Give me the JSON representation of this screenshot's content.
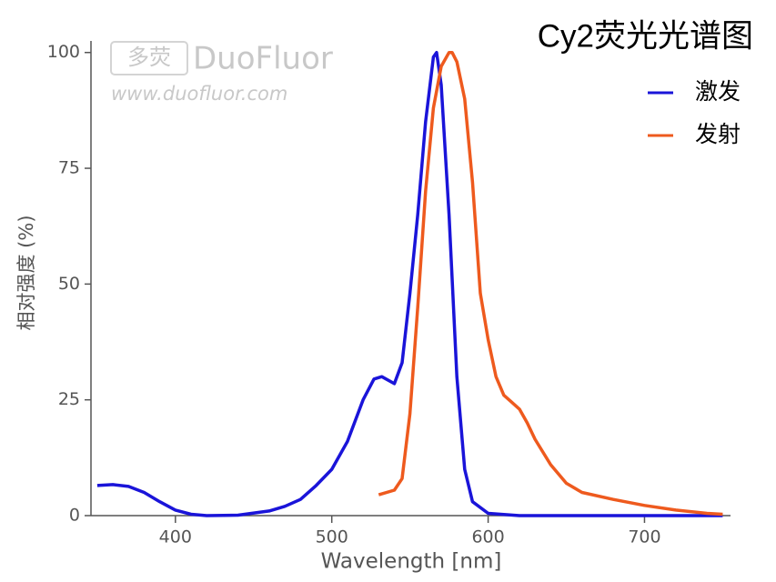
{
  "chart_data": {
    "type": "line",
    "title": "Cy2荧光光谱图",
    "watermark": "DuoFluor",
    "watermark_logo": "多荧",
    "watermark_url": "www.duofluor.com",
    "x_label": "Wavelength [nm]",
    "y_label": "相对强度 (%)",
    "xlim": [
      346,
      755
    ],
    "ylim": [
      0,
      102.5
    ],
    "xticks": [
      400,
      500,
      600,
      700
    ],
    "yticks": [
      0,
      25,
      50,
      75,
      100
    ],
    "legend": "top-right",
    "series": [
      {
        "name": "激发",
        "color": "#1a14d9",
        "x": [
          350,
          360,
          370,
          380,
          390,
          400,
          410,
          420,
          440,
          460,
          470,
          480,
          490,
          500,
          510,
          520,
          527,
          532,
          540,
          545,
          550,
          555,
          560,
          565,
          567,
          570,
          575,
          580,
          585,
          590,
          600,
          620,
          750
        ],
        "values": [
          6.5,
          6.7,
          6.3,
          5,
          3,
          1.2,
          0.3,
          0,
          0.1,
          1,
          2,
          3.5,
          6.5,
          10,
          16,
          25,
          29.5,
          30,
          28.5,
          33,
          48,
          65,
          85,
          99,
          100,
          93,
          65,
          30,
          10,
          3,
          0.5,
          0,
          0
        ]
      },
      {
        "name": "发射",
        "color": "#ee5a1e",
        "x": [
          530,
          540,
          545,
          550,
          555,
          560,
          565,
          570,
          575,
          577,
          580,
          585,
          590,
          595,
          600,
          605,
          610,
          615,
          620,
          625,
          630,
          640,
          650,
          660,
          680,
          700,
          720,
          740,
          750
        ],
        "values": [
          4.5,
          5.5,
          8,
          22,
          45,
          70,
          88,
          97,
          100,
          100,
          98,
          90,
          72,
          48,
          38,
          30,
          26,
          24.5,
          23,
          20,
          16.5,
          11,
          7,
          5,
          3.5,
          2.2,
          1.2,
          0.5,
          0.3
        ]
      }
    ]
  }
}
